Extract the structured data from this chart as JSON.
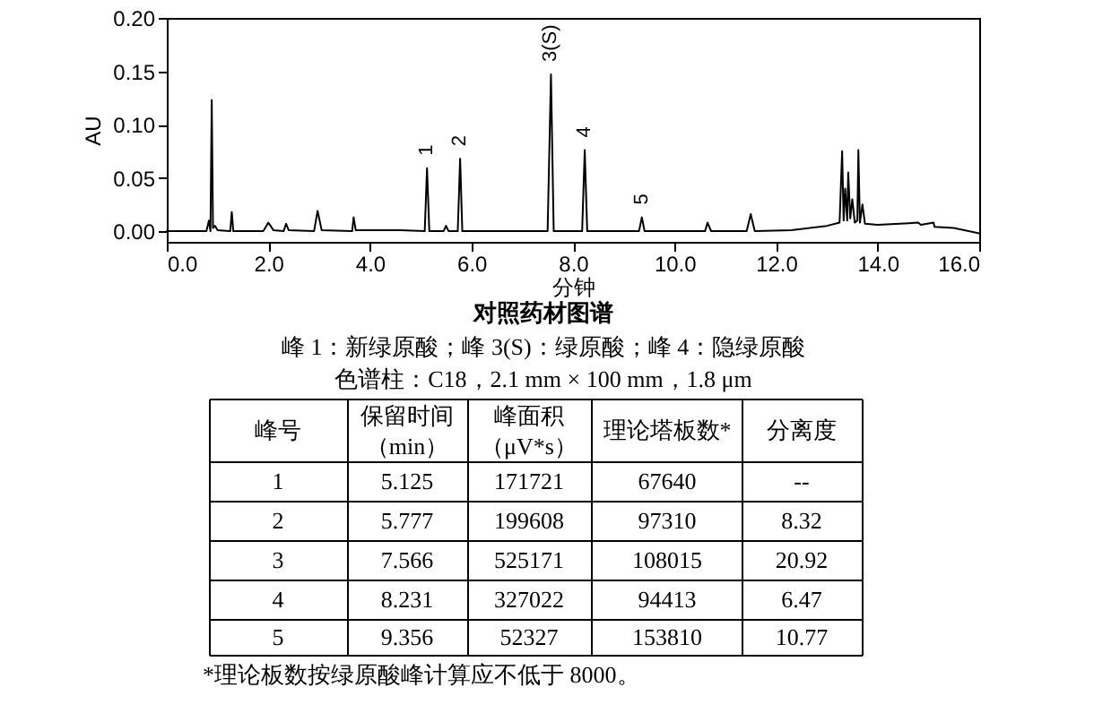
{
  "chart_data": {
    "type": "line",
    "title": "对照药材图谱",
    "subtitle": "峰 1：新绿原酸；峰 3(S)：绿原酸；峰 4：隐绿原酸",
    "xlabel": "分钟",
    "ylabel": "AU",
    "x": [
      0,
      0.78,
      0.83,
      0.86,
      0.885,
      0.91,
      0.95,
      1.0,
      1.25,
      1.28,
      1.31,
      1.9,
      2.0,
      2.1,
      2.3,
      2.35,
      2.4,
      2.9,
      2.97,
      3.05,
      3.65,
      3.68,
      3.72,
      4.6,
      5.08,
      5.125,
      5.17,
      5.45,
      5.5,
      5.55,
      5.73,
      5.777,
      5.82,
      7.5,
      7.566,
      7.62,
      8.18,
      8.231,
      8.28,
      9.3,
      9.356,
      9.41,
      10.6,
      10.65,
      10.72,
      11.42,
      11.5,
      11.58,
      12.3,
      13.0,
      13.25,
      13.3,
      13.33,
      13.36,
      13.4,
      13.42,
      13.46,
      13.5,
      13.55,
      13.6,
      13.62,
      13.65,
      13.7,
      13.75,
      14.0,
      14.8,
      14.85,
      15.1,
      15.12,
      15.5,
      16.0
    ],
    "series": [
      {
        "color": "#000000",
        "values": [
          0,
          0,
          0.01,
          0,
          0.123,
          0.003,
          0.005,
          0.001,
          0,
          0.018,
          0,
          0,
          0.008,
          0.001,
          0,
          0.007,
          0.001,
          0,
          0.019,
          0.001,
          0,
          0.013,
          0.001,
          0.001,
          0,
          0.059,
          0,
          0,
          0.005,
          0,
          0,
          0.068,
          0,
          0,
          0.147,
          0,
          0,
          0.076,
          0,
          0,
          0.013,
          0,
          0,
          0.008,
          0,
          0,
          0.016,
          0,
          0.001,
          0.005,
          0.008,
          0.075,
          0.01,
          0.04,
          0.01,
          0.055,
          0.012,
          0.03,
          0.008,
          0.01,
          0.076,
          0.008,
          0.025,
          0.007,
          0.006,
          0.008,
          0.006,
          0.008,
          0.004,
          0.003,
          -0.002
        ]
      }
    ],
    "xlim": [
      0,
      16
    ],
    "ylim": [
      -0.01,
      0.2
    ],
    "xticks": [
      {
        "value": 0,
        "label": "0.0"
      },
      {
        "value": 2,
        "label": "2.0"
      },
      {
        "value": 4,
        "label": "4.0"
      },
      {
        "value": 6,
        "label": "6.0"
      },
      {
        "value": 8,
        "label": "8.0"
      },
      {
        "value": 10,
        "label": "10.0"
      },
      {
        "value": 12,
        "label": "12.0"
      },
      {
        "value": 14,
        "label": "14.0"
      },
      {
        "value": 16,
        "label": "16.0"
      }
    ],
    "yticks": [
      {
        "value": 0,
        "label": "0.00"
      },
      {
        "value": 0.05,
        "label": "0.05"
      },
      {
        "value": 0.1,
        "label": "0.10"
      },
      {
        "value": 0.15,
        "label": "0.15"
      },
      {
        "value": 0.2,
        "label": "0.20"
      }
    ],
    "grid": false,
    "legend": false,
    "marker": "none",
    "line_style": "solid",
    "annotations": [
      {
        "text": "1",
        "x": 5.125,
        "y": 0.059
      },
      {
        "text": "2",
        "x": 5.777,
        "y": 0.068
      },
      {
        "text": "3(S)",
        "x": 7.566,
        "y": 0.147
      },
      {
        "text": "4",
        "x": 8.231,
        "y": 0.076
      },
      {
        "text": "5",
        "x": 9.356,
        "y": 0.013
      },
      "色谱柱：C18，2.1 mm × 100 mm，1.8 μm",
      "峰号",
      "保留时间",
      "（min）",
      "峰面积",
      "（μV*s）",
      "理论塔板数*",
      "分离度",
      "1",
      "5.125",
      "171721",
      "67640",
      "--",
      "2",
      "5.777",
      "199608",
      "97310",
      "8.32",
      "3",
      "7.566",
      "525171",
      "108015",
      "20.92",
      "4",
      "8.231",
      "327022",
      "94413",
      "6.47",
      "5",
      "9.356",
      "52327",
      "153810",
      "10.77",
      "*理论板数按绿原酸峰计算应不低于 8000。"
    ]
  }
}
